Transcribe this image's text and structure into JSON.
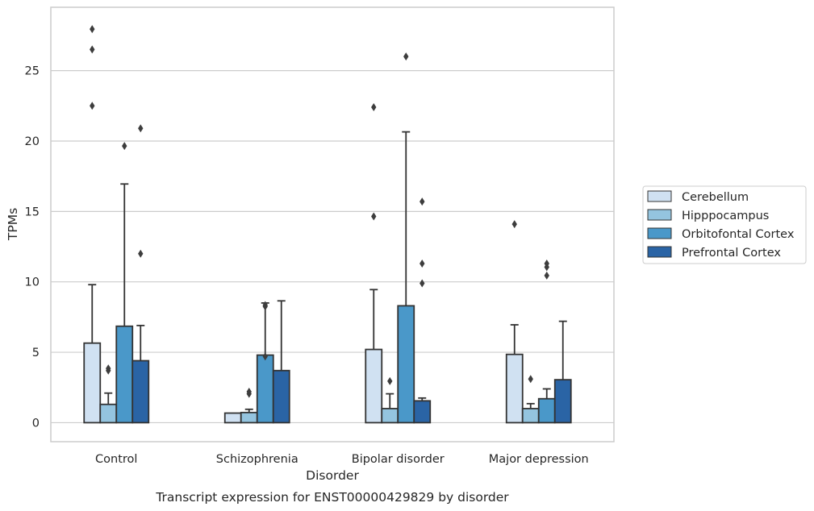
{
  "chart_data": {
    "type": "bar",
    "title": "",
    "caption": "Transcript expression for ENST00000429829 by disorder",
    "xlabel": "Disorder",
    "ylabel": "TPMs",
    "ylim": [
      -1.35,
      29.5
    ],
    "yticks": [
      0,
      5,
      10,
      15,
      20,
      25
    ],
    "grid": "horizontal",
    "legend_position": "right",
    "categories": [
      "Control",
      "Schizophrenia",
      "Bipolar disorder",
      "Major depression"
    ],
    "series": [
      {
        "name": "Cerebellum",
        "color": "#d0e1f2",
        "values": [
          5.65,
          0.68,
          5.2,
          4.85
        ],
        "error_upper": [
          9.8,
          null,
          9.45,
          6.95
        ],
        "outliers": [
          [
            22.5,
            26.5,
            27.95
          ],
          [],
          [
            14.65,
            22.4
          ],
          [
            14.1
          ]
        ]
      },
      {
        "name": "Hipppocampus",
        "color": "#94c4df",
        "values": [
          1.3,
          0.72,
          1.0,
          1.0
        ],
        "error_upper": [
          2.1,
          0.95,
          2.05,
          1.35
        ],
        "outliers": [
          [
            3.7,
            3.85
          ],
          [
            2.05,
            2.2
          ],
          [
            2.95
          ],
          [
            3.1
          ]
        ]
      },
      {
        "name": "Orbitofontal Cortex",
        "color": "#4a98c9",
        "values": [
          6.85,
          4.8,
          8.3,
          1.7
        ],
        "error_upper": [
          16.95,
          8.5,
          20.65,
          2.4
        ],
        "outliers": [
          [
            19.65
          ],
          [
            4.7,
            8.25,
            8.35
          ],
          [
            26.0
          ],
          [
            10.45,
            11.05,
            11.3
          ]
        ]
      },
      {
        "name": "Prefrontal Cortex",
        "color": "#2a64a5",
        "values": [
          4.4,
          3.7,
          1.55,
          3.05
        ],
        "error_upper": [
          6.9,
          8.65,
          1.75,
          7.2
        ],
        "outliers": [
          [
            12.0,
            20.9
          ],
          [],
          [
            9.9,
            11.3,
            15.7
          ],
          []
        ]
      }
    ]
  }
}
